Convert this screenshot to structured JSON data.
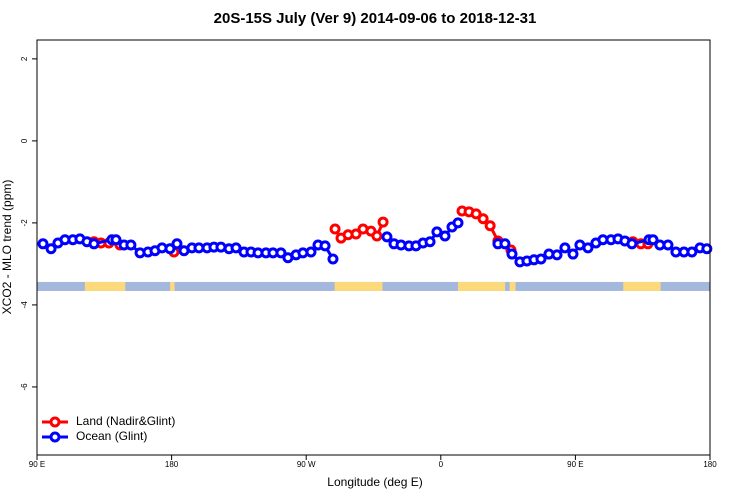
{
  "chart_data": {
    "type": "line",
    "title": "20S-15S July (Ver 9)   2014-09-06 to 2018-12-31",
    "x_label": "Longitude (deg E)",
    "y_label": "XCO2 - MLO trend (ppm)",
    "xlim": [
      90,
      540
    ],
    "ylim": [
      -7.66,
      2.46
    ],
    "xticks": [
      {
        "value": 90,
        "label": "90 E"
      },
      180,
      {
        "value": 270,
        "label": "90 W"
      },
      {
        "value": 360,
        "label": "0"
      },
      {
        "value": 450,
        "label": "90 E"
      },
      {
        "value": 540,
        "label": "180"
      }
    ],
    "yticks": [
      2,
      0,
      -2,
      -4,
      -6
    ],
    "legend": "bottom-left",
    "strip": {
      "ylim": [
        -3.66,
        -3.44
      ],
      "ocean_color": "#a3b8dc",
      "land_color": "#fcd97a",
      "land_ranges": [
        [
          122,
          149
        ],
        [
          179,
          182
        ],
        [
          289,
          321
        ],
        [
          371.5,
          403
        ],
        [
          406,
          410
        ],
        [
          482,
          507
        ]
      ]
    },
    "series": [
      {
        "name": "Land (Nadir&Glint)",
        "color": "#ff0000",
        "x": [
          128.1,
          132.8,
          138.1,
          145.5,
          null,
          181.6,
          null,
          289.3,
          293.3,
          298.0,
          303.3,
          308.0,
          313.3,
          317.3,
          321.4,
          null,
          374.2,
          378.9,
          383.6,
          388.3,
          393.0,
          398.2,
          406.9,
          null,
          488.5,
          493.8,
          498.5
        ],
        "values": [
          -2.46,
          -2.49,
          -2.49,
          -2.54,
          null,
          -2.71,
          null,
          -2.15,
          -2.37,
          -2.29,
          -2.27,
          -2.15,
          -2.2,
          -2.32,
          -1.98,
          null,
          -1.71,
          -1.73,
          -1.78,
          -1.9,
          -2.07,
          -2.44,
          -2.66,
          null,
          -2.46,
          -2.51,
          -2.51
        ]
      },
      {
        "name": "Ocean (Glint)",
        "color": "#0000ff",
        "x": [
          94.0,
          99.4,
          104.0,
          108.7,
          114.0,
          118.7,
          123.4,
          128.1,
          140.1,
          142.8,
          148.2,
          152.8,
          158.9,
          164.2,
          168.9,
          173.6,
          178.9,
          183.6,
          188.3,
          193.6,
          198.3,
          203.7,
          208.3,
          213.0,
          218.4,
          223.1,
          228.4,
          233.1,
          237.8,
          243.1,
          247.8,
          253.1,
          257.8,
          263.2,
          267.8,
          273.2,
          277.9,
          282.6,
          287.9,
          null,
          324.0,
          328.7,
          333.4,
          338.7,
          343.4,
          348.1,
          352.8,
          357.4,
          362.8,
          367.5,
          371.5,
          null,
          398.2,
          402.9,
          407.6,
          412.9,
          417.6,
          422.3,
          427.0,
          432.3,
          437.7,
          443.0,
          448.4,
          453.0,
          458.4,
          463.7,
          468.4,
          473.8,
          478.5,
          483.1,
          487.8,
          499.2,
          501.9,
          506.5,
          511.9,
          517.2,
          522.6,
          527.9,
          533.3,
          537.9
        ],
        "values": [
          -2.51,
          -2.63,
          -2.49,
          -2.41,
          -2.41,
          -2.39,
          -2.46,
          -2.51,
          -2.41,
          -2.41,
          -2.54,
          -2.54,
          -2.73,
          -2.71,
          -2.68,
          -2.61,
          -2.63,
          -2.51,
          -2.68,
          -2.61,
          -2.61,
          -2.61,
          -2.59,
          -2.59,
          -2.63,
          -2.61,
          -2.71,
          -2.71,
          -2.73,
          -2.73,
          -2.73,
          -2.73,
          -2.85,
          -2.78,
          -2.73,
          -2.71,
          -2.54,
          -2.56,
          -2.88,
          null,
          -2.34,
          -2.51,
          -2.54,
          -2.56,
          -2.56,
          -2.49,
          -2.46,
          -2.22,
          -2.32,
          -2.1,
          -2.0,
          null,
          -2.51,
          -2.51,
          -2.76,
          -2.95,
          -2.93,
          -2.9,
          -2.88,
          -2.76,
          -2.78,
          -2.61,
          -2.76,
          -2.54,
          -2.61,
          -2.49,
          -2.41,
          -2.41,
          -2.39,
          -2.44,
          -2.51,
          -2.41,
          -2.41,
          -2.54,
          -2.54,
          -2.71,
          -2.71,
          -2.71,
          -2.61,
          -2.63
        ]
      }
    ]
  }
}
